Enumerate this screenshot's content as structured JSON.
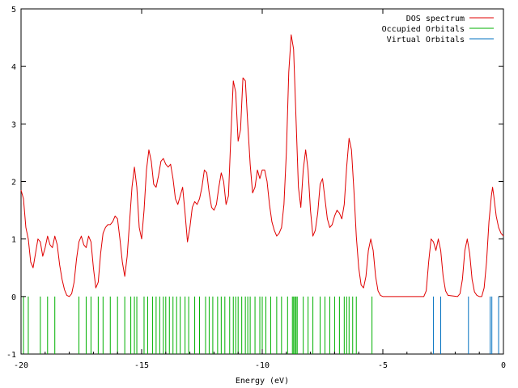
{
  "chart_data": {
    "type": "line",
    "title": "",
    "xlabel": "Energy (eV)",
    "ylabel": "",
    "xlim": [
      -20,
      0
    ],
    "ylim": [
      -1,
      5
    ],
    "x_ticks": [
      -20,
      -15,
      -10,
      -5,
      0
    ],
    "y_ticks": [
      -1,
      0,
      1,
      2,
      3,
      4,
      5
    ],
    "grid": false,
    "legend_position": "top-right",
    "series": [
      {
        "name": "DOS spectrum",
        "kind": "line",
        "color": "#e00000",
        "points": [
          [
            -20.0,
            1.85
          ],
          [
            -19.9,
            1.7
          ],
          [
            -19.8,
            1.2
          ],
          [
            -19.7,
            1.0
          ],
          [
            -19.6,
            0.6
          ],
          [
            -19.5,
            0.5
          ],
          [
            -19.4,
            0.75
          ],
          [
            -19.3,
            1.0
          ],
          [
            -19.2,
            0.95
          ],
          [
            -19.1,
            0.7
          ],
          [
            -19.0,
            0.85
          ],
          [
            -18.9,
            1.05
          ],
          [
            -18.8,
            0.9
          ],
          [
            -18.7,
            0.85
          ],
          [
            -18.6,
            1.05
          ],
          [
            -18.5,
            0.9
          ],
          [
            -18.4,
            0.55
          ],
          [
            -18.3,
            0.3
          ],
          [
            -18.2,
            0.12
          ],
          [
            -18.1,
            0.02
          ],
          [
            -18.0,
            0.0
          ],
          [
            -17.9,
            0.05
          ],
          [
            -17.8,
            0.25
          ],
          [
            -17.7,
            0.65
          ],
          [
            -17.6,
            0.95
          ],
          [
            -17.5,
            1.05
          ],
          [
            -17.4,
            0.9
          ],
          [
            -17.3,
            0.85
          ],
          [
            -17.2,
            1.05
          ],
          [
            -17.1,
            0.95
          ],
          [
            -17.0,
            0.5
          ],
          [
            -16.9,
            0.15
          ],
          [
            -16.8,
            0.25
          ],
          [
            -16.7,
            0.75
          ],
          [
            -16.6,
            1.1
          ],
          [
            -16.5,
            1.2
          ],
          [
            -16.4,
            1.25
          ],
          [
            -16.3,
            1.25
          ],
          [
            -16.2,
            1.3
          ],
          [
            -16.1,
            1.4
          ],
          [
            -16.0,
            1.35
          ],
          [
            -15.9,
            1.0
          ],
          [
            -15.8,
            0.6
          ],
          [
            -15.7,
            0.35
          ],
          [
            -15.6,
            0.7
          ],
          [
            -15.5,
            1.3
          ],
          [
            -15.4,
            1.9
          ],
          [
            -15.3,
            2.25
          ],
          [
            -15.2,
            1.9
          ],
          [
            -15.1,
            1.2
          ],
          [
            -15.0,
            1.0
          ],
          [
            -14.9,
            1.5
          ],
          [
            -14.8,
            2.2
          ],
          [
            -14.7,
            2.55
          ],
          [
            -14.6,
            2.35
          ],
          [
            -14.5,
            1.95
          ],
          [
            -14.4,
            1.9
          ],
          [
            -14.3,
            2.1
          ],
          [
            -14.2,
            2.35
          ],
          [
            -14.1,
            2.4
          ],
          [
            -14.0,
            2.3
          ],
          [
            -13.9,
            2.25
          ],
          [
            -13.8,
            2.3
          ],
          [
            -13.7,
            2.05
          ],
          [
            -13.6,
            1.7
          ],
          [
            -13.5,
            1.6
          ],
          [
            -13.4,
            1.75
          ],
          [
            -13.3,
            1.9
          ],
          [
            -13.2,
            1.45
          ],
          [
            -13.1,
            0.95
          ],
          [
            -13.0,
            1.2
          ],
          [
            -12.9,
            1.55
          ],
          [
            -12.8,
            1.65
          ],
          [
            -12.7,
            1.6
          ],
          [
            -12.6,
            1.7
          ],
          [
            -12.5,
            1.9
          ],
          [
            -12.4,
            2.2
          ],
          [
            -12.3,
            2.15
          ],
          [
            -12.2,
            1.8
          ],
          [
            -12.1,
            1.55
          ],
          [
            -12.0,
            1.5
          ],
          [
            -11.9,
            1.6
          ],
          [
            -11.8,
            1.9
          ],
          [
            -11.7,
            2.15
          ],
          [
            -11.6,
            2.0
          ],
          [
            -11.5,
            1.6
          ],
          [
            -11.4,
            1.75
          ],
          [
            -11.3,
            2.8
          ],
          [
            -11.2,
            3.75
          ],
          [
            -11.1,
            3.55
          ],
          [
            -11.0,
            2.7
          ],
          [
            -10.9,
            2.9
          ],
          [
            -10.8,
            3.8
          ],
          [
            -10.7,
            3.75
          ],
          [
            -10.6,
            3.0
          ],
          [
            -10.5,
            2.3
          ],
          [
            -10.4,
            1.8
          ],
          [
            -10.3,
            1.9
          ],
          [
            -10.2,
            2.2
          ],
          [
            -10.1,
            2.05
          ],
          [
            -10.0,
            2.2
          ],
          [
            -9.9,
            2.2
          ],
          [
            -9.8,
            2.0
          ],
          [
            -9.7,
            1.6
          ],
          [
            -9.6,
            1.3
          ],
          [
            -9.5,
            1.15
          ],
          [
            -9.4,
            1.05
          ],
          [
            -9.3,
            1.1
          ],
          [
            -9.2,
            1.2
          ],
          [
            -9.1,
            1.6
          ],
          [
            -9.0,
            2.5
          ],
          [
            -8.9,
            3.9
          ],
          [
            -8.8,
            4.55
          ],
          [
            -8.7,
            4.3
          ],
          [
            -8.6,
            3.1
          ],
          [
            -8.5,
            1.9
          ],
          [
            -8.4,
            1.55
          ],
          [
            -8.3,
            2.2
          ],
          [
            -8.2,
            2.55
          ],
          [
            -8.1,
            2.2
          ],
          [
            -8.0,
            1.5
          ],
          [
            -7.9,
            1.05
          ],
          [
            -7.8,
            1.15
          ],
          [
            -7.7,
            1.45
          ],
          [
            -7.6,
            1.95
          ],
          [
            -7.5,
            2.05
          ],
          [
            -7.4,
            1.7
          ],
          [
            -7.3,
            1.35
          ],
          [
            -7.2,
            1.2
          ],
          [
            -7.1,
            1.25
          ],
          [
            -7.0,
            1.4
          ],
          [
            -6.9,
            1.5
          ],
          [
            -6.8,
            1.45
          ],
          [
            -6.7,
            1.35
          ],
          [
            -6.6,
            1.6
          ],
          [
            -6.5,
            2.25
          ],
          [
            -6.4,
            2.75
          ],
          [
            -6.3,
            2.55
          ],
          [
            -6.2,
            1.85
          ],
          [
            -6.1,
            1.05
          ],
          [
            -6.0,
            0.5
          ],
          [
            -5.9,
            0.2
          ],
          [
            -5.8,
            0.15
          ],
          [
            -5.7,
            0.35
          ],
          [
            -5.6,
            0.8
          ],
          [
            -5.5,
            1.0
          ],
          [
            -5.4,
            0.8
          ],
          [
            -5.3,
            0.35
          ],
          [
            -5.2,
            0.1
          ],
          [
            -5.1,
            0.02
          ],
          [
            -5.0,
            0.0
          ],
          [
            -4.0,
            0.0
          ],
          [
            -3.3,
            0.0
          ],
          [
            -3.2,
            0.1
          ],
          [
            -3.1,
            0.6
          ],
          [
            -3.0,
            1.0
          ],
          [
            -2.9,
            0.95
          ],
          [
            -2.8,
            0.8
          ],
          [
            -2.7,
            1.0
          ],
          [
            -2.6,
            0.8
          ],
          [
            -2.5,
            0.35
          ],
          [
            -2.4,
            0.1
          ],
          [
            -2.3,
            0.02
          ],
          [
            -1.9,
            0.0
          ],
          [
            -1.8,
            0.05
          ],
          [
            -1.7,
            0.3
          ],
          [
            -1.6,
            0.8
          ],
          [
            -1.5,
            1.0
          ],
          [
            -1.4,
            0.75
          ],
          [
            -1.3,
            0.3
          ],
          [
            -1.2,
            0.08
          ],
          [
            -1.1,
            0.02
          ],
          [
            -1.0,
            0.0
          ],
          [
            -0.9,
            0.0
          ],
          [
            -0.8,
            0.15
          ],
          [
            -0.7,
            0.6
          ],
          [
            -0.6,
            1.3
          ],
          [
            -0.5,
            1.75
          ],
          [
            -0.45,
            1.9
          ],
          [
            -0.4,
            1.75
          ],
          [
            -0.3,
            1.4
          ],
          [
            -0.2,
            1.2
          ],
          [
            -0.1,
            1.1
          ],
          [
            0.0,
            1.05
          ]
        ]
      },
      {
        "name": "Occupied Orbitals",
        "kind": "impulses",
        "color": "#00b000",
        "x": [
          -19.9,
          -19.7,
          -19.2,
          -18.9,
          -18.6,
          -17.6,
          -17.3,
          -17.1,
          -16.8,
          -16.6,
          -16.3,
          -16.0,
          -15.7,
          -15.45,
          -15.3,
          -15.2,
          -14.9,
          -14.75,
          -14.55,
          -14.4,
          -14.25,
          -14.1,
          -14.0,
          -13.85,
          -13.7,
          -13.55,
          -13.4,
          -13.2,
          -13.05,
          -12.8,
          -12.6,
          -12.35,
          -12.2,
          -12.05,
          -11.85,
          -11.7,
          -11.55,
          -11.35,
          -11.2,
          -11.1,
          -11.0,
          -10.85,
          -10.7,
          -10.6,
          -10.5,
          -10.3,
          -10.1,
          -10.0,
          -9.85,
          -9.65,
          -9.4,
          -9.2,
          -8.95,
          -8.75,
          -8.7,
          -8.65,
          -8.6,
          -8.55,
          -8.3,
          -8.1,
          -7.9,
          -7.6,
          -7.4,
          -7.2,
          -7.0,
          -6.8,
          -6.6,
          -6.5,
          -6.4,
          -6.25,
          -6.1,
          -5.45
        ]
      },
      {
        "name": "Virtual Orbitals",
        "kind": "impulses",
        "color": "#0070c0",
        "x": [
          -2.9,
          -2.6,
          -1.45,
          -0.55,
          -0.48,
          -0.2
        ]
      }
    ]
  }
}
